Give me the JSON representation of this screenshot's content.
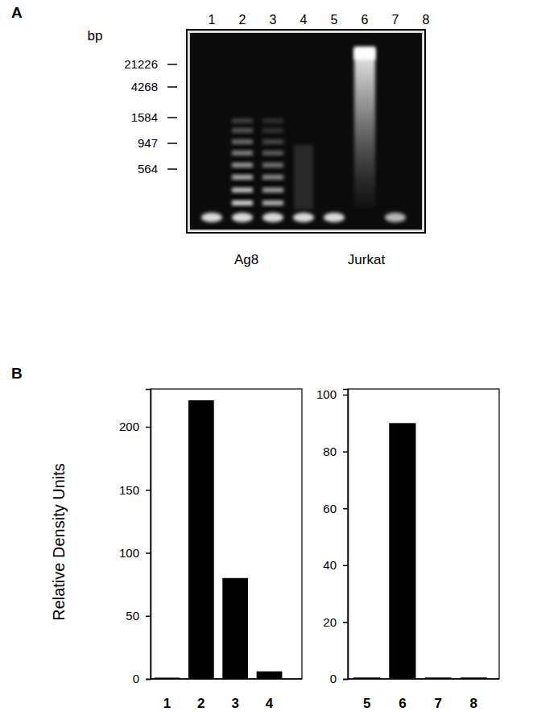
{
  "panel_labels": [
    "A",
    "B"
  ],
  "gel": {
    "size_unit": "bp",
    "markers": [
      21226,
      4268,
      1584,
      947,
      564
    ],
    "lanes": [
      "1",
      "2",
      "3",
      "4",
      "5",
      "6",
      "7",
      "8"
    ],
    "cell_lines": [
      "Ag8",
      "Jurkat"
    ]
  },
  "chart_data": [
    {
      "type": "bar",
      "y_label": "Relative Density Units",
      "categories": [
        "1",
        "2",
        "3",
        "4"
      ],
      "values": [
        1,
        221,
        80,
        6
      ],
      "color": "#000000",
      "ylim": [
        0,
        230
      ],
      "yticks": [
        0,
        50,
        100,
        150,
        200
      ]
    },
    {
      "type": "bar",
      "categories": [
        "5",
        "6",
        "7",
        "8"
      ],
      "values": [
        0.5,
        90,
        0.5,
        0.5
      ],
      "color": "#000000",
      "ylim": [
        0,
        102
      ],
      "yticks": [
        0,
        20,
        40,
        60,
        80,
        100
      ]
    }
  ]
}
